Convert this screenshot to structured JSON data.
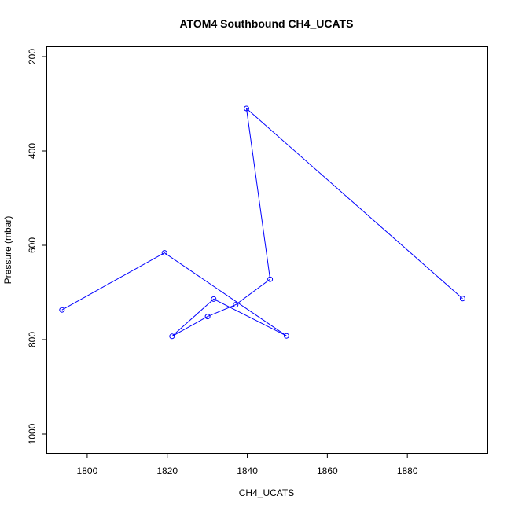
{
  "chart_data": {
    "type": "line",
    "title": "ATOM4 Southbound CH4_UCATS",
    "xlabel": "CH4_UCATS",
    "ylabel": "Pressure (mbar)",
    "xlim": [
      1790,
      1900
    ],
    "ylim": [
      1040,
      180
    ],
    "y_reversed": true,
    "x_ticks": [
      1800,
      1820,
      1840,
      1860,
      1880
    ],
    "y_ticks": [
      200,
      400,
      600,
      800,
      1000
    ],
    "grid": false,
    "series": [
      {
        "color": "#0000ff",
        "marker": "open-circle",
        "points": [
          {
            "x": 1893.8,
            "y": 713
          },
          {
            "x": 1839.8,
            "y": 310
          },
          {
            "x": 1845.7,
            "y": 672
          },
          {
            "x": 1837.1,
            "y": 726
          },
          {
            "x": 1830.1,
            "y": 751
          },
          {
            "x": 1821.2,
            "y": 793
          },
          {
            "x": 1831.6,
            "y": 714
          },
          {
            "x": 1849.8,
            "y": 792
          },
          {
            "x": 1819.3,
            "y": 616
          },
          {
            "x": 1793.7,
            "y": 737
          }
        ]
      }
    ]
  }
}
